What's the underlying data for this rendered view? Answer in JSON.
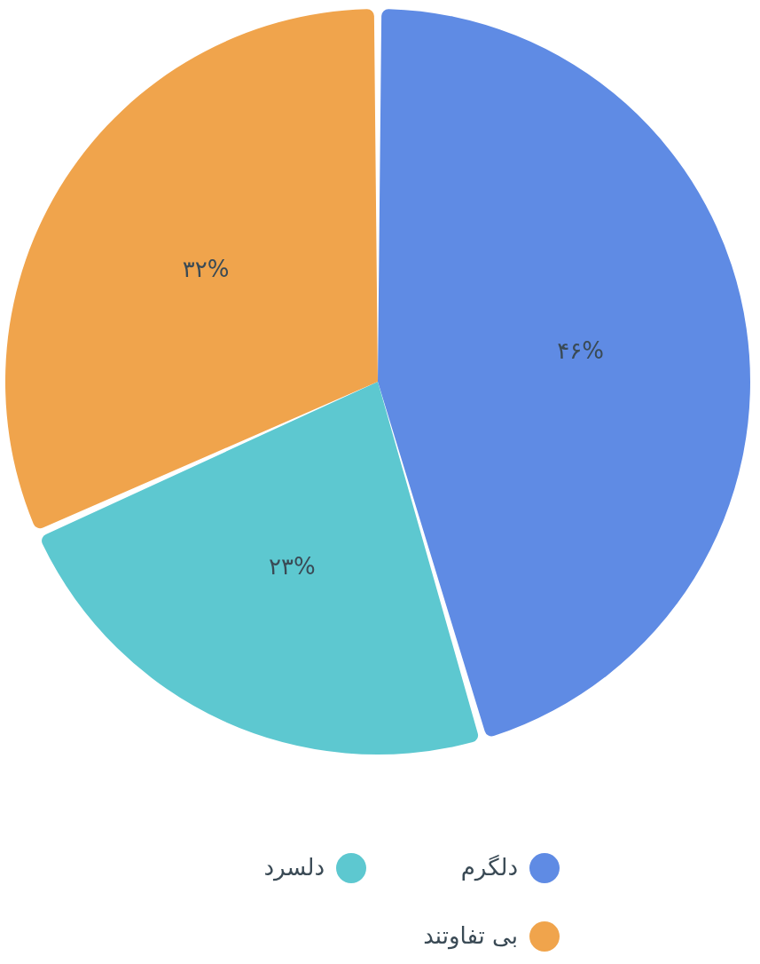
{
  "chart_data": {
    "type": "pie",
    "categories": [
      "دلگرم",
      "دلسرد",
      "بی تفاوتند"
    ],
    "values": [
      46,
      23,
      32
    ],
    "colors": [
      "#5f8be4",
      "#5dc8d0",
      "#f0a44c"
    ],
    "value_labels": [
      "۴۶%",
      "۲۳%",
      "۳۲%"
    ],
    "legend": "bottom"
  }
}
